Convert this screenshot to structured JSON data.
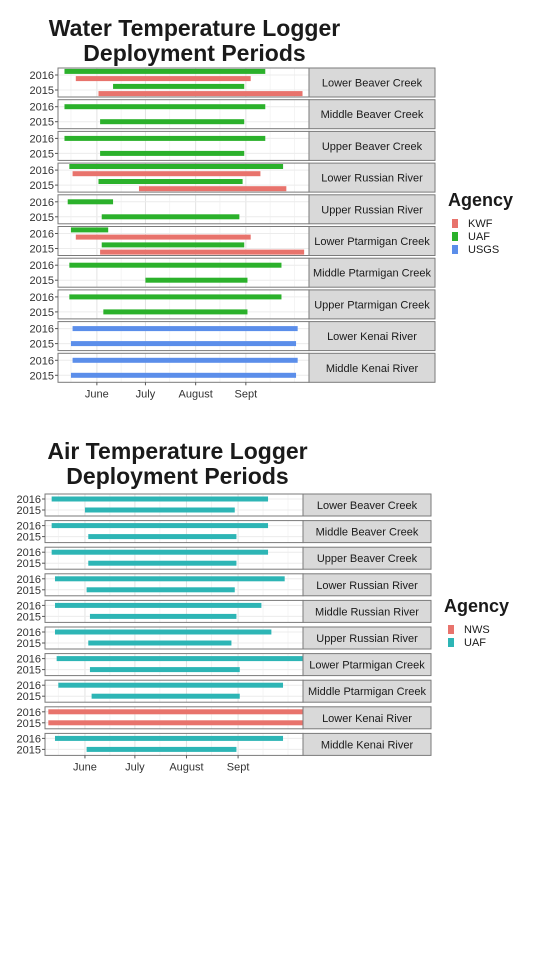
{
  "water_chart": {
    "title_line1": "Water Temperature Logger",
    "title_line2": "Deployment Periods",
    "chart_data": {
      "type": "gantt",
      "title": "Water Temperature Logger Deployment Periods",
      "x_tick_labels": [
        "June",
        "July",
        "August",
        "Sept"
      ],
      "x_range": [
        "May 8",
        "Oct 10"
      ],
      "y_tick_labels": [
        "2016",
        "2015"
      ],
      "grid": true,
      "legend_title": "Agency",
      "legend_position": "right",
      "legend_entries": [
        "KWF",
        "UAF",
        "USGS"
      ],
      "agency_colors": {
        "KWF": "#E8736C",
        "UAF": "#2BB12B",
        "USGS": "#5B8EEA",
        "NWS": "#E8736C"
      },
      "facets": [
        {
          "name": "Lower Beaver Creek",
          "bars": [
            {
              "year": "2016",
              "agency": "UAF",
              "start": "May 12",
              "end": "Sep 13"
            },
            {
              "year": "2016",
              "agency": "KWF",
              "start": "May 19",
              "end": "Sep 4"
            },
            {
              "year": "2015",
              "agency": "UAF",
              "start": "Jun 11",
              "end": "Aug 31"
            },
            {
              "year": "2015",
              "agency": "KWF",
              "start": "Jun 2",
              "end": "Oct 6"
            }
          ]
        },
        {
          "name": "Middle Beaver Creek",
          "bars": [
            {
              "year": "2016",
              "agency": "UAF",
              "start": "May 12",
              "end": "Sep 13"
            },
            {
              "year": "2015",
              "agency": "UAF",
              "start": "Jun 3",
              "end": "Aug 31"
            }
          ]
        },
        {
          "name": "Upper Beaver Creek",
          "bars": [
            {
              "year": "2016",
              "agency": "UAF",
              "start": "May 12",
              "end": "Sep 13"
            },
            {
              "year": "2015",
              "agency": "UAF",
              "start": "Jun 3",
              "end": "Aug 31"
            }
          ]
        },
        {
          "name": "Lower Russian River",
          "bars": [
            {
              "year": "2016",
              "agency": "UAF",
              "start": "May 15",
              "end": "Sep 24"
            },
            {
              "year": "2016",
              "agency": "KWF",
              "start": "May 17",
              "end": "Sep 10"
            },
            {
              "year": "2015",
              "agency": "UAF",
              "start": "Jun 2",
              "end": "Aug 30"
            },
            {
              "year": "2015",
              "agency": "KWF",
              "start": "Jun 27",
              "end": "Sep 26"
            }
          ]
        },
        {
          "name": "Upper Russian River",
          "bars": [
            {
              "year": "2016",
              "agency": "UAF",
              "start": "May 14",
              "end": "Jun 11"
            },
            {
              "year": "2015",
              "agency": "UAF",
              "start": "Jun 4",
              "end": "Aug 28"
            }
          ]
        },
        {
          "name": "Lower Ptarmigan Creek",
          "bars": [
            {
              "year": "2016",
              "agency": "UAF",
              "start": "May 16",
              "end": "Jun 8"
            },
            {
              "year": "2016",
              "agency": "KWF",
              "start": "May 19",
              "end": "Sep 4"
            },
            {
              "year": "2015",
              "agency": "UAF",
              "start": "Jun 4",
              "end": "Aug 31"
            },
            {
              "year": "2015",
              "agency": "KWF",
              "start": "Jun 3",
              "end": "Oct 7"
            }
          ]
        },
        {
          "name": "Middle Ptarmigan Creek",
          "bars": [
            {
              "year": "2016",
              "agency": "UAF",
              "start": "May 15",
              "end": "Sep 23"
            },
            {
              "year": "2015",
              "agency": "UAF",
              "start": "Jul 1",
              "end": "Sep 2"
            }
          ]
        },
        {
          "name": "Upper Ptarmigan Creek",
          "bars": [
            {
              "year": "2016",
              "agency": "UAF",
              "start": "May 15",
              "end": "Sep 23"
            },
            {
              "year": "2015",
              "agency": "UAF",
              "start": "Jun 5",
              "end": "Sep 2"
            }
          ]
        },
        {
          "name": "Lower Kenai River",
          "bars": [
            {
              "year": "2016",
              "agency": "USGS",
              "start": "May 17",
              "end": "Oct 3"
            },
            {
              "year": "2015",
              "agency": "USGS",
              "start": "May 16",
              "end": "Oct 2"
            }
          ]
        },
        {
          "name": "Middle Kenai River",
          "bars": [
            {
              "year": "2016",
              "agency": "USGS",
              "start": "May 17",
              "end": "Oct 3"
            },
            {
              "year": "2015",
              "agency": "USGS",
              "start": "May 16",
              "end": "Oct 2"
            }
          ]
        }
      ]
    }
  },
  "air_chart": {
    "title_line1": "Air Temperature Logger",
    "title_line2": "Deployment Periods",
    "chart_data": {
      "type": "gantt",
      "title": "Air Temperature Logger Deployment Periods",
      "x_tick_labels": [
        "June",
        "July",
        "August",
        "Sept"
      ],
      "x_range": [
        "May 8",
        "Oct 10"
      ],
      "y_tick_labels": [
        "2016",
        "2015"
      ],
      "grid": true,
      "legend_title": "Agency",
      "legend_position": "right",
      "legend_entries": [
        "NWS",
        "UAF"
      ],
      "agency_colors": {
        "NWS": "#E8736C",
        "UAF": "#2DB5B5"
      },
      "facets": [
        {
          "name": "Lower Beaver Creek",
          "bars": [
            {
              "year": "2016",
              "agency": "UAF",
              "start": "May 12",
              "end": "Sep 19"
            },
            {
              "year": "2015",
              "agency": "UAF",
              "start": "Jun 1",
              "end": "Aug 30"
            }
          ]
        },
        {
          "name": "Middle Beaver Creek",
          "bars": [
            {
              "year": "2016",
              "agency": "UAF",
              "start": "May 12",
              "end": "Sep 19"
            },
            {
              "year": "2015",
              "agency": "UAF",
              "start": "Jun 3",
              "end": "Aug 31"
            }
          ]
        },
        {
          "name": "Upper Beaver Creek",
          "bars": [
            {
              "year": "2016",
              "agency": "UAF",
              "start": "May 12",
              "end": "Sep 19"
            },
            {
              "year": "2015",
              "agency": "UAF",
              "start": "Jun 3",
              "end": "Aug 31"
            }
          ]
        },
        {
          "name": "Lower Russian River",
          "bars": [
            {
              "year": "2016",
              "agency": "UAF",
              "start": "May 14",
              "end": "Sep 29"
            },
            {
              "year": "2015",
              "agency": "UAF",
              "start": "Jun 2",
              "end": "Aug 30"
            }
          ]
        },
        {
          "name": "Middle Russian River",
          "bars": [
            {
              "year": "2016",
              "agency": "UAF",
              "start": "May 14",
              "end": "Sep 15"
            },
            {
              "year": "2015",
              "agency": "UAF",
              "start": "Jun 4",
              "end": "Aug 31"
            }
          ]
        },
        {
          "name": "Upper Russian River",
          "bars": [
            {
              "year": "2016",
              "agency": "UAF",
              "start": "May 14",
              "end": "Sep 21"
            },
            {
              "year": "2015",
              "agency": "UAF",
              "start": "Jun 3",
              "end": "Aug 28"
            }
          ]
        },
        {
          "name": "Lower Ptarmigan Creek",
          "bars": [
            {
              "year": "2016",
              "agency": "UAF",
              "start": "May 15",
              "end": "Oct 10"
            },
            {
              "year": "2015",
              "agency": "UAF",
              "start": "Jun 4",
              "end": "Sep 2"
            }
          ]
        },
        {
          "name": "Middle Ptarmigan Creek",
          "bars": [
            {
              "year": "2016",
              "agency": "UAF",
              "start": "May 16",
              "end": "Sep 28"
            },
            {
              "year": "2015",
              "agency": "UAF",
              "start": "Jun 5",
              "end": "Sep 2"
            }
          ]
        },
        {
          "name": "Lower Kenai River",
          "bars": [
            {
              "year": "2016",
              "agency": "NWS",
              "start": "May 10",
              "end": "Oct 10"
            },
            {
              "year": "2015",
              "agency": "NWS",
              "start": "May 10",
              "end": "Oct 10"
            }
          ]
        },
        {
          "name": "Middle Kenai River",
          "bars": [
            {
              "year": "2016",
              "agency": "UAF",
              "start": "May 14",
              "end": "Sep 28"
            },
            {
              "year": "2015",
              "agency": "UAF",
              "start": "Jun 2",
              "end": "Aug 31"
            }
          ]
        }
      ]
    }
  }
}
